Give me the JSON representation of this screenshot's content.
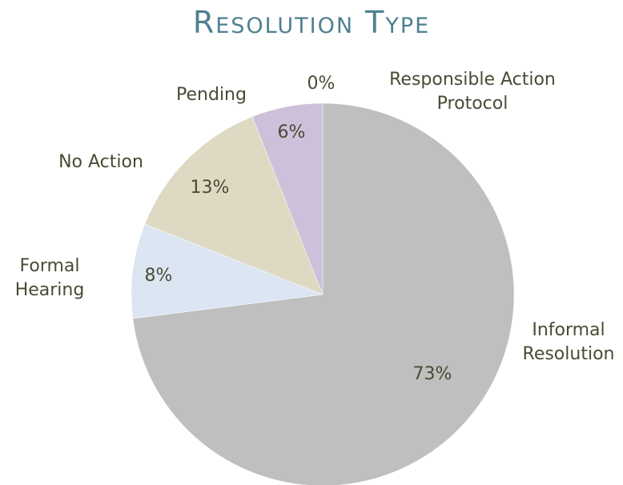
{
  "chart_data": {
    "type": "pie",
    "title": "Resolution Type",
    "categories": [
      "Responsible Action Protocol",
      "Informal Resolution",
      "Formal Hearing",
      "No Action",
      "Pending"
    ],
    "values": [
      0,
      73,
      8,
      13,
      6
    ],
    "value_labels": [
      "0%",
      "73%",
      "8%",
      "13%",
      "6%"
    ],
    "colors": [
      "#4bacc6",
      "#bfbfbf",
      "#dce6f2",
      "#ddd9c3",
      "#ccc0da"
    ]
  }
}
